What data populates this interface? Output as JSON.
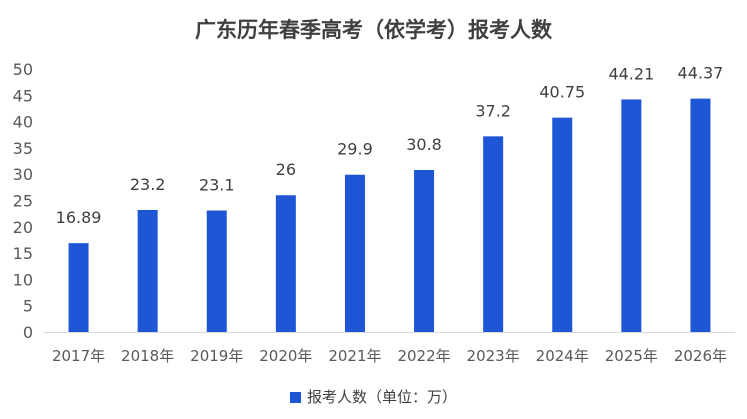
{
  "chart_data": {
    "type": "bar",
    "title": "广东历年春季高考（依学考）报考人数",
    "categories": [
      "2017年",
      "2018年",
      "2019年",
      "2020年",
      "2021年",
      "2022年",
      "2023年",
      "2024年",
      "2025年",
      "2026年"
    ],
    "series": [
      {
        "name": "报考人数（单位：万）",
        "values": [
          16.89,
          23.2,
          23.1,
          26,
          29.9,
          30.8,
          37.2,
          40.75,
          44.21,
          44.37
        ],
        "labels": [
          "16.89",
          "23.2",
          "23.1",
          "26",
          "29.9",
          "30.8",
          "37.2",
          "40.75",
          "44.21",
          "44.37"
        ]
      }
    ],
    "ylim": [
      0,
      50
    ],
    "yticks": [
      "0",
      "5",
      "10",
      "15",
      "20",
      "25",
      "30",
      "35",
      "40",
      "45",
      "50"
    ],
    "grid": false,
    "legend_position": "bottom",
    "bar_color": "#1f56d6"
  }
}
